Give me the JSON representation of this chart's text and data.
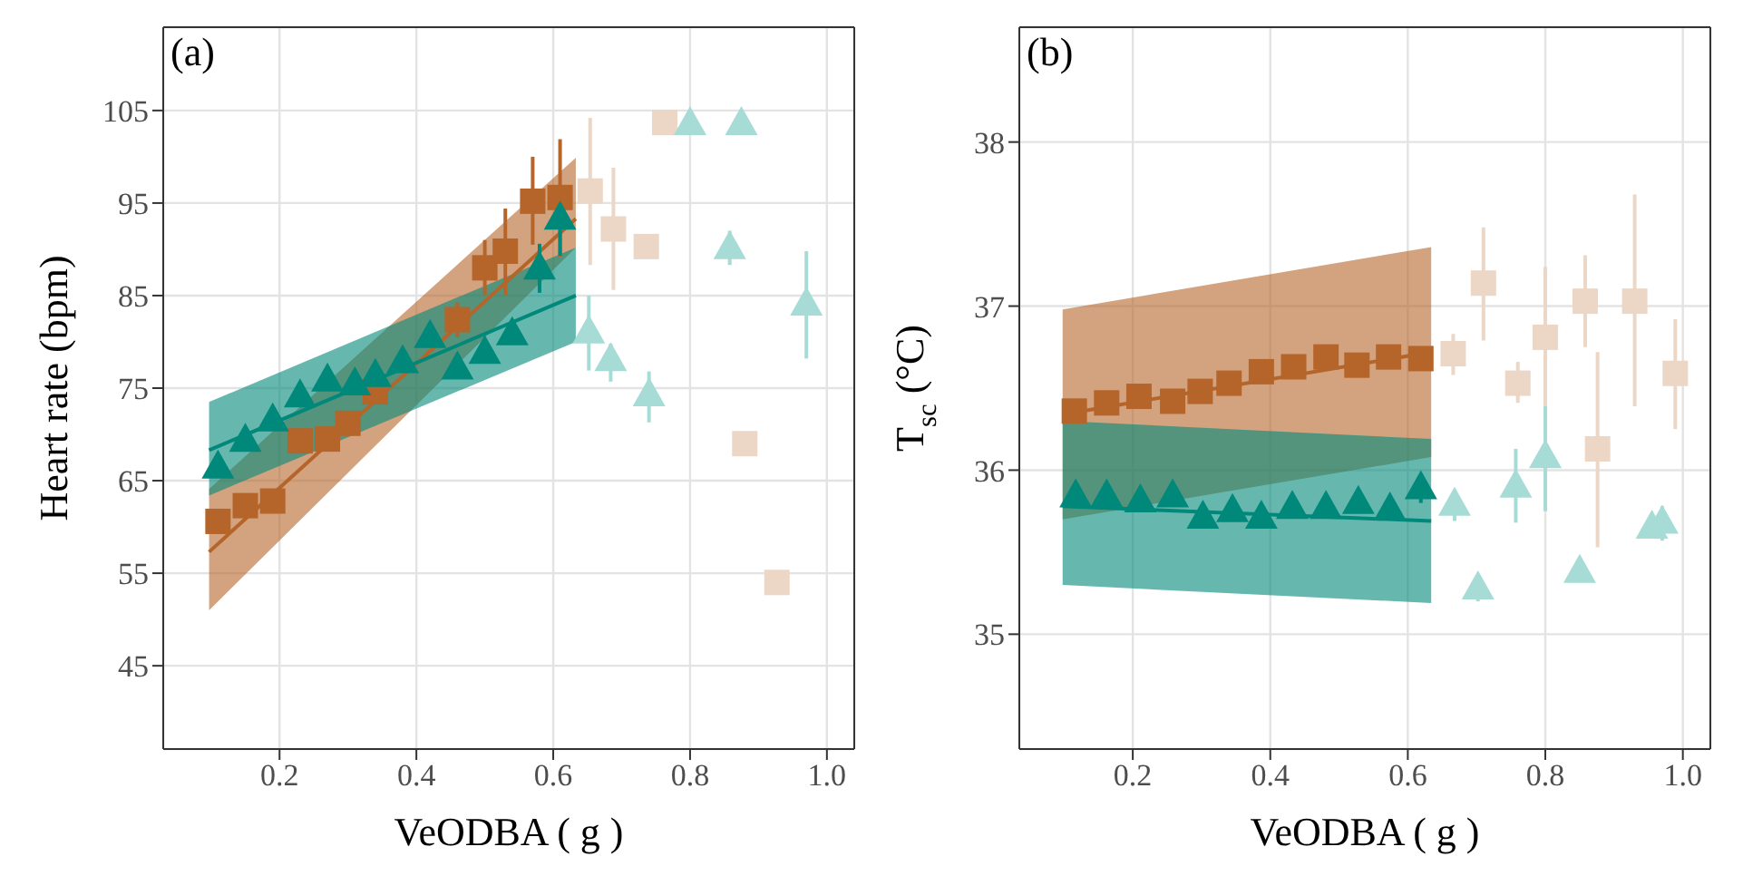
{
  "chart_data": [
    {
      "type": "scatter",
      "title": "(a)",
      "xlabel": "VeODBA ( g )",
      "ylabel": "Heart rate (bpm)",
      "xlim": [
        0.03,
        1.04
      ],
      "ylim": [
        36,
        114
      ],
      "xticks": [
        0.2,
        0.4,
        0.6,
        0.8,
        {
          "value": 1,
          "label": "1.0"
        }
      ],
      "yticks": [
        45,
        55,
        65,
        75,
        85,
        95,
        105
      ],
      "grid": true,
      "series": [
        {
          "type": "line",
          "color": "#b5652a",
          "x": [
            0.097,
            0.633
          ],
          "values": [
            57.3,
            93.3
          ],
          "lower": [
            51.0,
            90.2
          ],
          "upper": [
            64.1,
            99.9
          ]
        },
        {
          "type": "line",
          "color": "#00897a",
          "x": [
            0.097,
            0.633
          ],
          "values": [
            68.3,
            85.0
          ],
          "lower": [
            63.4,
            80.0
          ],
          "upper": [
            73.5,
            90.2
          ]
        },
        {
          "type": "scatter",
          "marker": "square",
          "color": "#b5652a",
          "x": [
            0.11,
            0.15,
            0.19,
            0.23,
            0.27,
            0.3,
            0.34,
            0.38,
            0.42,
            0.46,
            0.5,
            0.53,
            0.57,
            0.61
          ],
          "values": [
            60.6,
            62.3,
            62.8,
            69.3,
            69.5,
            71.2,
            74.6,
            null,
            null,
            82.4,
            88.0,
            89.8,
            95.2,
            95.6
          ],
          "errors": [
            null,
            null,
            null,
            null,
            null,
            null,
            null,
            null,
            null,
            [
              80.5,
              84.3
            ],
            [
              85.1,
              91.0
            ],
            [
              85.1,
              94.4
            ],
            [
              90.5,
              100.0
            ],
            [
              89.2,
              101.9
            ]
          ]
        },
        {
          "type": "scatter",
          "marker": "square",
          "color": "#ecd6c5",
          "x": [
            0.654,
            0.688,
            0.736,
            0.763,
            0.88,
            0.927
          ],
          "values": [
            96.3,
            92.2,
            90.3,
            103.7,
            69.0,
            54.0
          ],
          "errors": [
            [
              88.3,
              104.2
            ],
            [
              85.6,
              98.8
            ],
            null,
            null,
            null,
            null
          ]
        },
        {
          "type": "scatter",
          "marker": "triangle",
          "color": "#00897a",
          "x": [
            0.11,
            0.15,
            0.19,
            0.23,
            0.27,
            0.31,
            0.34,
            0.38,
            0.42,
            0.46,
            0.5,
            0.54,
            0.58,
            0.61
          ],
          "values": [
            66.6,
            69.5,
            71.7,
            74.3,
            76.0,
            75.6,
            76.5,
            78.0,
            80.7,
            77.3,
            79.0,
            81.0,
            88.1,
            93.5
          ],
          "errors": [
            null,
            null,
            null,
            null,
            null,
            null,
            null,
            null,
            null,
            null,
            null,
            null,
            [
              85.3,
              90.6
            ],
            [
              89.3,
              96.8
            ]
          ]
        },
        {
          "type": "scatter",
          "marker": "triangle",
          "color": "#a6dcd5",
          "x": [
            0.652,
            0.684,
            0.74,
            0.8,
            0.858,
            0.875,
            0.97
          ],
          "values": [
            81.2,
            78.2,
            74.4,
            103.7,
            90.3,
            103.7,
            84.2
          ],
          "errors": [
            [
              76.9,
              85.0
            ],
            [
              75.7,
              79.8
            ],
            [
              71.3,
              76.8
            ],
            null,
            [
              88.3,
              92.0
            ],
            null,
            [
              78.2,
              89.8
            ]
          ]
        }
      ]
    },
    {
      "type": "scatter",
      "title": "(b)",
      "xlabel": "VeODBA ( g )",
      "ylabel": "T$_{sc}$ (°C)",
      "xlim": [
        0.035,
        1.04
      ],
      "ylim": [
        34.3,
        38.7
      ],
      "xticks": [
        0.2,
        0.4,
        0.6,
        0.8,
        {
          "value": 1,
          "label": "1.0"
        }
      ],
      "yticks": [
        35,
        36,
        37,
        38
      ],
      "grid": true,
      "series": [
        {
          "type": "line",
          "color": "#b5652a",
          "x": [
            0.098,
            0.634
          ],
          "values": [
            36.34,
            36.72
          ],
          "lower": [
            35.7,
            36.08
          ],
          "upper": [
            36.98,
            37.36
          ]
        },
        {
          "type": "line",
          "color": "#00897a",
          "x": [
            0.098,
            0.634
          ],
          "values": [
            35.78,
            35.69
          ],
          "lower": [
            35.3,
            35.19
          ],
          "upper": [
            36.3,
            36.19
          ]
        },
        {
          "type": "scatter",
          "marker": "square",
          "color": "#b5652a",
          "x": [
            0.115,
            0.162,
            0.209,
            0.258,
            0.298,
            0.34,
            0.387,
            0.434,
            0.481,
            0.526,
            0.572,
            0.619
          ],
          "values": [
            36.36,
            36.41,
            36.45,
            36.42,
            36.48,
            36.53,
            36.6,
            36.63,
            36.69,
            36.64,
            36.69,
            36.68
          ]
        },
        {
          "type": "scatter",
          "marker": "square",
          "color": "#ecd6c5",
          "x": [
            0.666,
            0.71,
            0.76,
            0.8,
            0.858,
            0.876,
            0.93,
            0.989
          ],
          "values": [
            36.71,
            37.14,
            36.53,
            36.81,
            37.03,
            36.13,
            37.03,
            36.59
          ],
          "errors": [
            [
              36.58,
              36.83
            ],
            [
              36.79,
              37.48
            ],
            [
              36.41,
              36.66
            ],
            [
              36.39,
              37.24
            ],
            [
              36.75,
              37.31
            ],
            [
              35.53,
              36.72
            ],
            [
              36.39,
              37.68
            ],
            [
              36.25,
              36.92
            ]
          ]
        },
        {
          "type": "scatter",
          "marker": "triangle",
          "color": "#00897a",
          "x": [
            0.117,
            0.162,
            0.211,
            0.258,
            0.302,
            0.345,
            0.387,
            0.432,
            0.481,
            0.528,
            0.574,
            0.619
          ],
          "values": [
            35.85,
            35.85,
            35.82,
            35.85,
            35.72,
            35.76,
            35.72,
            35.78,
            35.78,
            35.81,
            35.77,
            35.9
          ],
          "errors": [
            null,
            null,
            null,
            null,
            null,
            null,
            null,
            null,
            null,
            null,
            null,
            [
              35.8,
              35.97
            ]
          ]
        },
        {
          "type": "scatter",
          "marker": "triangle",
          "color": "#a6dcd5",
          "x": [
            0.668,
            0.702,
            0.757,
            0.8,
            0.85,
            0.955,
            0.97
          ],
          "values": [
            35.8,
            35.29,
            35.91,
            36.09,
            35.39,
            35.66,
            35.69
          ],
          "errors": [
            [
              35.69,
              35.88
            ],
            [
              35.2,
              35.36
            ],
            [
              35.68,
              36.13
            ],
            [
              35.75,
              36.39
            ],
            null,
            null,
            [
              35.57,
              35.78
            ]
          ]
        }
      ]
    }
  ]
}
